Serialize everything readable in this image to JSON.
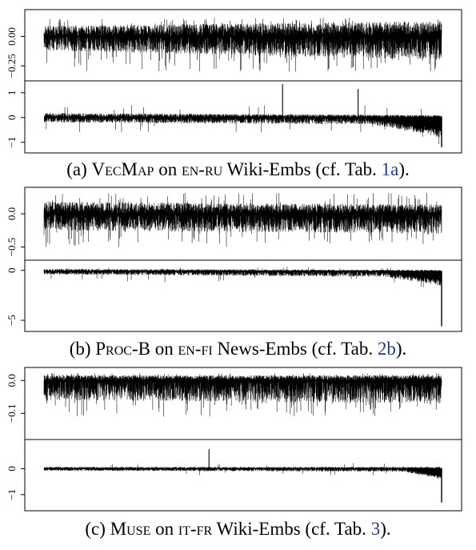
{
  "chart_data": [
    {
      "type": "line",
      "panel": "a",
      "caption": {
        "label": "(a)",
        "method": "VecMap",
        "on": "on",
        "pair": "en-ru",
        "embs": "Wiki-Embs",
        "cf_open": "(cf. Tab.",
        "ref": "1a",
        "cf_close": ")."
      },
      "subplots": [
        {
          "ylim": [
            -0.35,
            0.2
          ],
          "yticks": [
            0.0,
            -0.25
          ],
          "yticklabels": [
            "0.00",
            "−0.25"
          ],
          "ytick_rotation": "vertical",
          "baseline": 0.0,
          "n_points": 3000,
          "seed": 11,
          "pattern": {
            "up": [
              0.09,
              0.13
            ],
            "down": [
              0.12,
              0.2
            ],
            "spike_prob": 0.05,
            "spike_up": 0.16,
            "spike_down": 0.3,
            "tail_start": 0.88,
            "tail_amp": 0.0
          }
        },
        {
          "ylim": [
            -1.3,
            1.35
          ],
          "yticks": [
            1,
            0,
            -1
          ],
          "yticklabels": [
            "1",
            "0",
            "−1"
          ],
          "ytick_rotation": "vertical",
          "baseline": 0.0,
          "n_points": 3000,
          "seed": 23,
          "pattern": {
            "up": [
              0.18,
              0.1
            ],
            "down": [
              0.2,
              0.3
            ],
            "spike_prob": 0.01,
            "spike_up": 0.5,
            "spike_down": 0.6,
            "tail_start": 0.82,
            "tail_amp": 0.55
          },
          "peaks": [
            {
              "x": 0.6,
              "y": 1.35
            },
            {
              "x": 0.79,
              "y": 1.15
            }
          ],
          "end_drop": -1.2
        }
      ]
    },
    {
      "type": "line",
      "panel": "b",
      "caption": {
        "label": "(b)",
        "method": "Proc-B",
        "on": "on",
        "pair": "en-fi",
        "embs": "News-Embs",
        "cf_open": "(cf. Tab.",
        "ref": "2b",
        "cf_close": ")."
      },
      "subplots": [
        {
          "ylim": [
            -0.65,
            0.35
          ],
          "yticks": [
            0.0,
            -0.5
          ],
          "yticklabels": [
            "0.0",
            "−0.5"
          ],
          "ytick_rotation": "vertical",
          "baseline": 0.0,
          "n_points": 3000,
          "seed": 37,
          "pattern": {
            "up": [
              0.18,
              0.14
            ],
            "down": [
              0.25,
              0.3
            ],
            "spike_prob": 0.05,
            "spike_up": 0.32,
            "spike_down": 0.5,
            "tail_start": 0.9,
            "tail_amp": 0.0
          }
        },
        {
          "ylim": [
            -5.8,
            0.7
          ],
          "yticks": [
            0,
            -5
          ],
          "yticklabels": [
            "0",
            "−5"
          ],
          "ytick_rotation": "vertical",
          "baseline": -0.1,
          "n_points": 3000,
          "seed": 41,
          "pattern": {
            "up": [
              0.25,
              0.15
            ],
            "down": [
              0.3,
              0.6
            ],
            "spike_prob": 0.01,
            "spike_up": 0.45,
            "spike_down": 1.1,
            "tail_start": 0.85,
            "tail_amp": 0.9
          },
          "end_drop": -5.6
        }
      ]
    },
    {
      "type": "line",
      "panel": "c",
      "caption": {
        "label": "(c)",
        "method": "Muse",
        "on": "on",
        "pair": "it-fr",
        "embs": "Wiki-Embs",
        "cf_open": "(cf. Tab.",
        "ref": "3",
        "cf_close": ")."
      },
      "subplots": [
        {
          "ylim": [
            -0.17,
            0.03
          ],
          "yticks": [
            0.0,
            -0.1
          ],
          "yticklabels": [
            "0.0",
            "−0.1"
          ],
          "ytick_rotation": "vertical",
          "baseline": 0.0,
          "n_points": 3000,
          "seed": 53,
          "pattern": {
            "up": [
              0.016,
              0.016
            ],
            "down": [
              0.06,
              0.07
            ],
            "spike_prob": 0.06,
            "spike_up": 0.022,
            "spike_down": 0.11,
            "tail_start": 0.95,
            "tail_amp": 0.0
          }
        },
        {
          "ylim": [
            -1.5,
            1.0
          ],
          "yticks": [
            0,
            -1
          ],
          "yticklabels": [
            "0",
            "−1"
          ],
          "ytick_rotation": "vertical",
          "baseline": 0.0,
          "n_points": 3000,
          "seed": 61,
          "pattern": {
            "up": [
              0.07,
              0.07
            ],
            "down": [
              0.08,
              0.12
            ],
            "spike_prob": 0.01,
            "spike_up": 0.22,
            "spike_down": 0.28,
            "tail_start": 0.9,
            "tail_amp": 0.3
          },
          "peaks": [
            {
              "x": 0.415,
              "y": 0.75
            }
          ],
          "end_drop": -1.3
        }
      ]
    }
  ]
}
